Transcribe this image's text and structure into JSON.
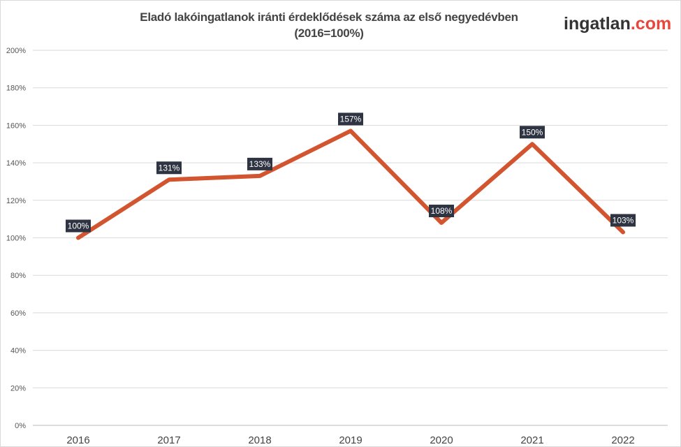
{
  "chart_data": {
    "type": "line",
    "title": "Eladó lakóingatlanok iránti érdeklődések száma az első negyedévben",
    "subtitle": "(2016=100%)",
    "categories": [
      "2016",
      "2017",
      "2018",
      "2019",
      "2020",
      "2021",
      "2022"
    ],
    "values": [
      100,
      131,
      133,
      157,
      108,
      150,
      103
    ],
    "data_labels": [
      "100%",
      "131%",
      "133%",
      "157%",
      "108%",
      "150%",
      "103%"
    ],
    "ylim": [
      0,
      200
    ],
    "yticks": [
      "0%",
      "20%",
      "40%",
      "60%",
      "80%",
      "100%",
      "120%",
      "140%",
      "160%",
      "180%",
      "200%"
    ],
    "grid": true,
    "line_color": "#d35530",
    "label_bg": "#2e3441"
  },
  "logo": {
    "main": "ingatlan",
    "suffix": ".com",
    "suffix_color": "#e8473c"
  }
}
